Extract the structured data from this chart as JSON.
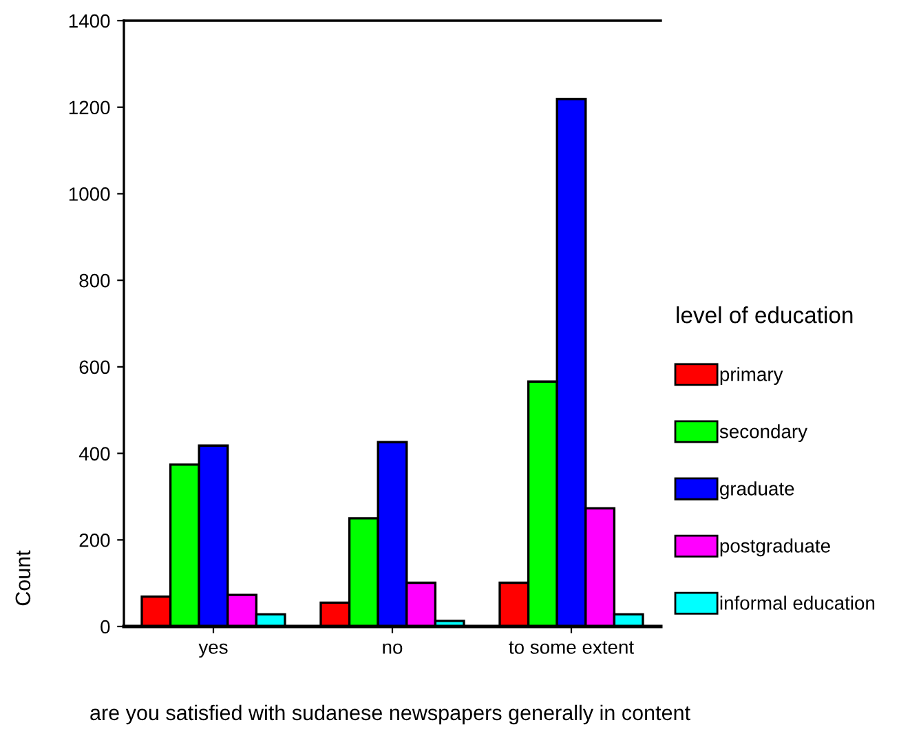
{
  "chart_data": {
    "type": "bar",
    "xlabel": "are you satisfied with sudanese newspapers generally in content",
    "ylabel": "Count",
    "legend_title": "level of education",
    "legend": "right",
    "categories": [
      "yes",
      "no",
      "to some extent"
    ],
    "series": [
      {
        "name": "primary",
        "color": "#ff0000",
        "values": [
          69,
          55,
          101
        ]
      },
      {
        "name": "secondary",
        "color": "#00ff00",
        "values": [
          374,
          250,
          566
        ]
      },
      {
        "name": "graduate",
        "color": "#0000ff",
        "values": [
          418,
          426,
          1219
        ]
      },
      {
        "name": "postgraduate",
        "color": "#ff00ff",
        "values": [
          73,
          101,
          273
        ]
      },
      {
        "name": "informal education",
        "color": "#00ffff",
        "values": [
          28,
          13,
          28
        ]
      }
    ],
    "ylim": [
      0,
      1400
    ],
    "yticks": [
      0,
      200,
      400,
      600,
      800,
      1000,
      1200,
      1400
    ],
    "grid": false
  }
}
